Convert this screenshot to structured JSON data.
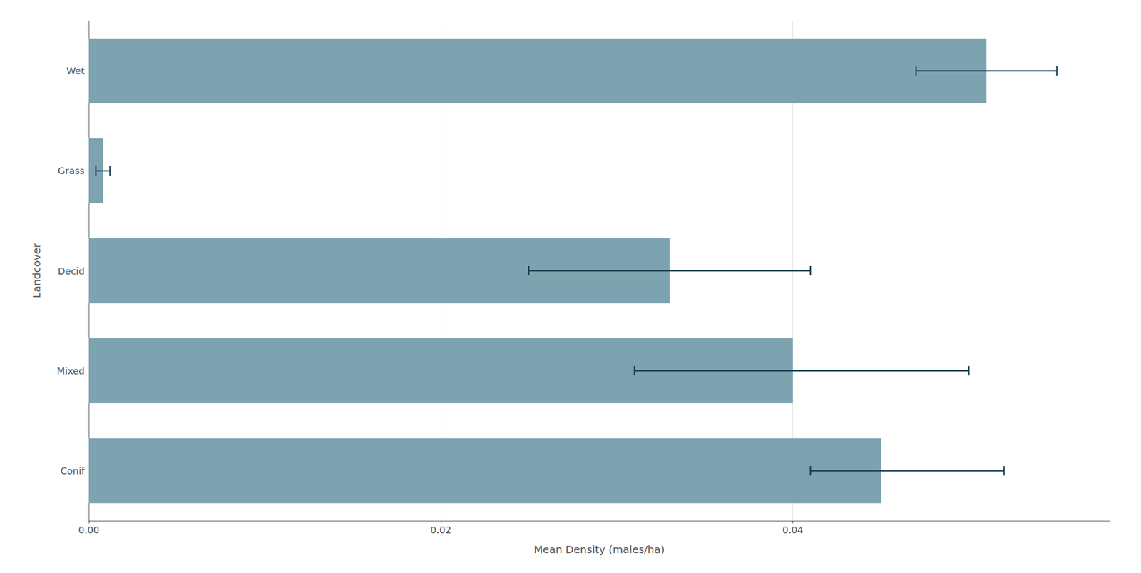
{
  "chart_data": {
    "type": "bar",
    "orientation": "horizontal",
    "categories": [
      "Wet",
      "Grass",
      "Decid",
      "Mixed",
      "Conif"
    ],
    "values": [
      0.051,
      0.0008,
      0.033,
      0.04,
      0.045
    ],
    "error_lower": [
      0.047,
      0.0004,
      0.025,
      0.031,
      0.041
    ],
    "error_upper": [
      0.055,
      0.0012,
      0.041,
      0.05,
      0.052
    ],
    "color": "#7ca3af",
    "error_color": "#1b3f52",
    "xlabel": "Mean Density (males/ha)",
    "ylabel": "Landcover",
    "xlim": [
      0,
      0.058
    ],
    "xticks": [
      {
        "value": 0.0,
        "label": "0.00"
      },
      {
        "value": 0.02,
        "label": "0.02"
      },
      {
        "value": 0.04,
        "label": "0.04"
      }
    ],
    "grid": true
  }
}
